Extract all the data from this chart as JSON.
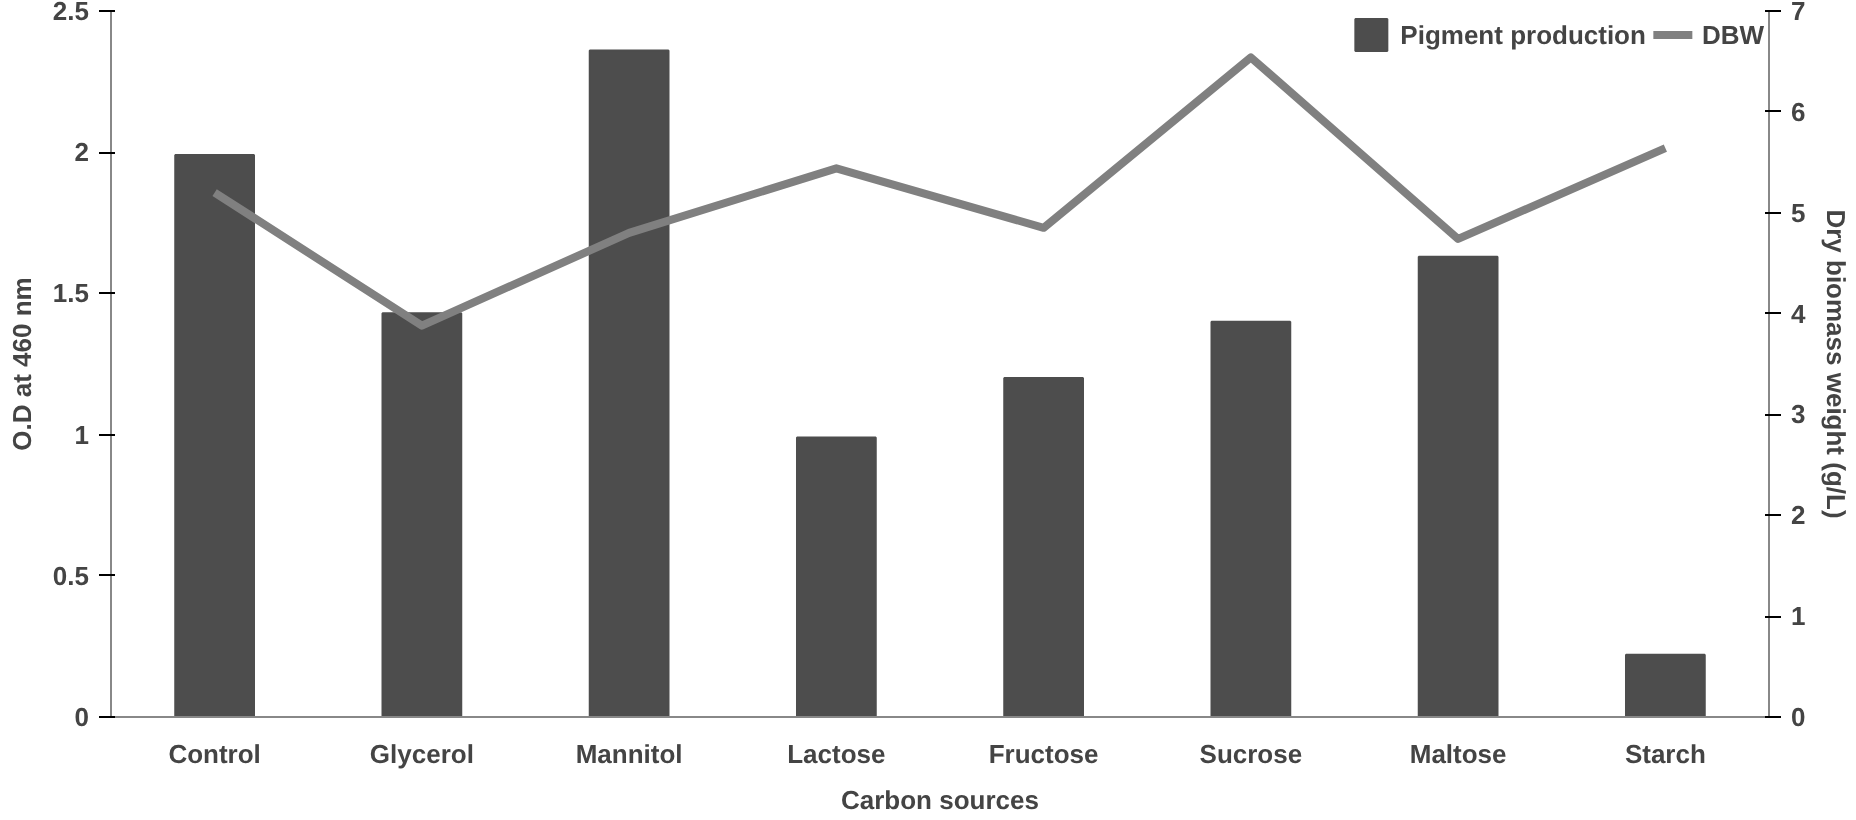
{
  "chart_data": {
    "type": "bar",
    "xlabel": "Carbon sources",
    "ylabel": "O.D at 460 nm",
    "y2label": "Dry biomass weight (g/L)",
    "categories": [
      "Control",
      "Glycerol",
      "Mannitol",
      "Lactose",
      "Fructose",
      "Sucrose",
      "Maltose",
      "Starch"
    ],
    "series": [
      {
        "name": "Pigment production",
        "color": "#4d4d4d",
        "values": [
          1.99,
          1.43,
          2.36,
          0.99,
          1.2,
          1.4,
          1.63,
          0.22
        ]
      },
      {
        "name": "DBW",
        "type": "line",
        "axis": "y2",
        "color": "#808080",
        "values": [
          5.2,
          3.88,
          4.8,
          5.44,
          4.85,
          6.54,
          4.74,
          5.64
        ]
      }
    ],
    "ylim": [
      0,
      2.5
    ],
    "yticks": [
      0,
      0.5,
      1,
      1.5,
      2,
      2.5
    ],
    "y2lim": [
      0,
      7
    ],
    "y2ticks": [
      0,
      1,
      2,
      3,
      4,
      5,
      6,
      7
    ],
    "grid": false,
    "legend": "top right",
    "marker": "none",
    "line_style": "solid"
  }
}
